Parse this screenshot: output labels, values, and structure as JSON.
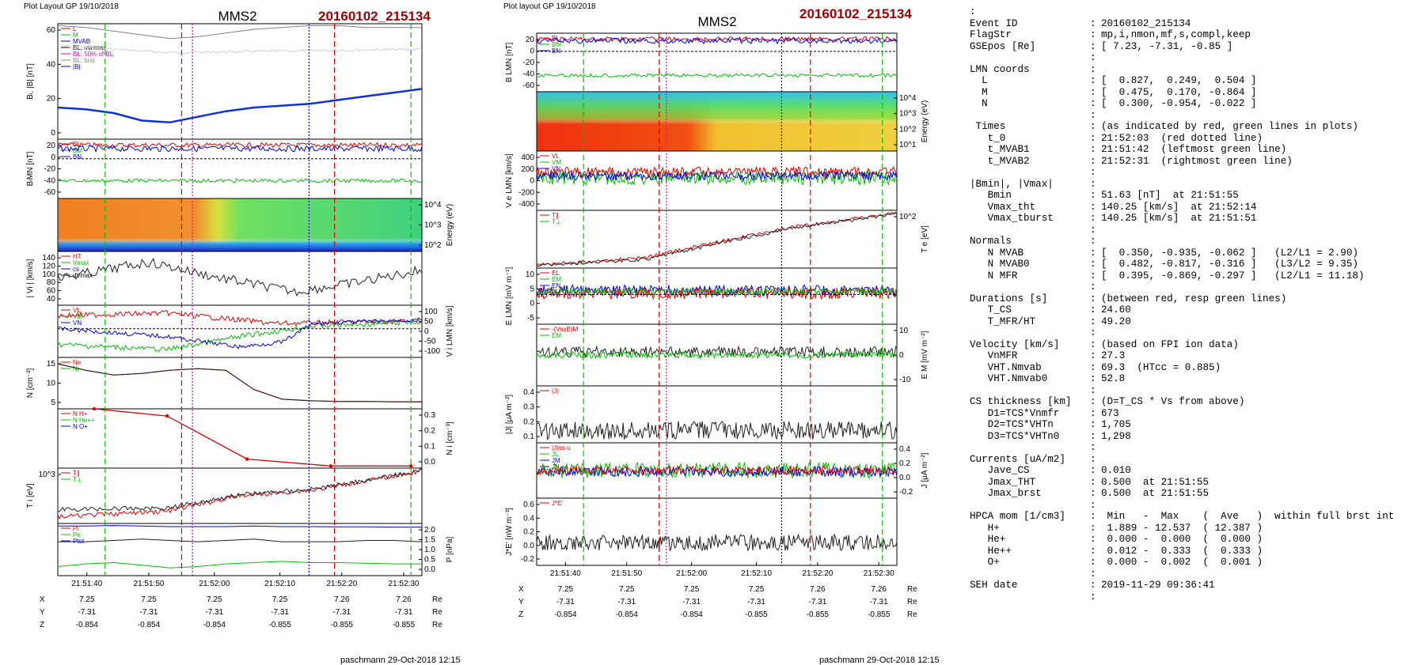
{
  "left_panel": {
    "header_left": "Plot Layout GP 19/10/2018",
    "title": "MMS2",
    "event": "20160102_215134",
    "footer": "paschmann 29-Oct-2018 12:15"
  },
  "right_panel": {
    "header_left": "Plot layout GP 19/10/2018",
    "title": "MMS2",
    "event": "20160102_215134",
    "footer": "paschmann 29-Oct-2018 12:15"
  },
  "colors": {
    "red": "#e00000",
    "green": "#00c000",
    "blue": "#0000e0",
    "magenta": "#e000e0",
    "title_red": "#a00000",
    "black": "#000000",
    "gray": "#888888"
  },
  "chart_data": [
    {
      "type": "line",
      "title": "MMS2",
      "subtitle": "20160102_215134",
      "x_tick_labels": [
        "21:51:40",
        "21:51:50",
        "21:52:00",
        "21:52:10",
        "21:52:20",
        "21:52:30"
      ],
      "position_table": {
        "rows": [
          {
            "label": "X",
            "values": [
              "7.25",
              "7.25",
              "7.25",
              "7.25",
              "7.26",
              "7.26"
            ],
            "unit": "Re"
          },
          {
            "label": "Y",
            "values": [
              "-7.31",
              "-7.31",
              "-7.31",
              "-7.31",
              "-7.31",
              "-7.31"
            ],
            "unit": "Re"
          },
          {
            "label": "Z",
            "values": [
              "-0.854",
              "-0.854",
              "-0.854",
              "-0.855",
              "-0.855",
              "-0.855"
            ],
            "unit": "Re"
          }
        ]
      },
      "panels": [
        {
          "ylabel": "Bₗ, |B| [nT]",
          "yticks": [
            "60",
            "40",
            "20",
            "0"
          ],
          "ylim": [
            0,
            62
          ],
          "legend": [
            "L",
            "M",
            "MVAB",
            "BL, minmax",
            "BL: 50% of BL",
            "BL: brst",
            "|B|"
          ],
          "series": [
            {
              "name": "|B|",
              "values": [
                61,
                60,
                58,
                56,
                54,
                55,
                57,
                59,
                60,
                61,
                61,
                60,
                60,
                60
              ]
            },
            {
              "name": "BL brst",
              "values": [
                17,
                16,
                14,
                10,
                9,
                12,
                15,
                17,
                18,
                19,
                21,
                23,
                25,
                27
              ]
            }
          ]
        },
        {
          "ylabel": "BₗMN [nT]",
          "yticks": [
            "20",
            "0",
            "-20",
            "-40",
            "-60"
          ],
          "ylim": [
            -60,
            25
          ],
          "legend": [
            "BL",
            "BM",
            "BN"
          ]
        },
        {
          "ylabel": "Energy (eV)",
          "yticks": [
            "10^4",
            "10^3",
            "10^2"
          ],
          "type": "heatmap"
        },
        {
          "ylabel": "| Vi | [km/s]",
          "yticks": [
            "140",
            "120",
            "100",
            "80",
            "60",
            "40"
          ],
          "ylim": [
            30,
            140
          ],
          "legend": [
            "HT",
            "Vmax",
            "cs",
            "dVmax"
          ]
        },
        {
          "ylabel": "V i LMN [km/s]",
          "yticks": [
            "100",
            "50",
            "0",
            "-50",
            "-100"
          ],
          "ylim": [
            -100,
            100
          ],
          "legend": [
            "VL",
            "VM",
            "VN"
          ]
        },
        {
          "ylabel": "N [cm⁻³]",
          "yticks": [
            "15",
            "10",
            "5"
          ],
          "ylim": [
            0,
            16
          ],
          "legend": [
            "Ne",
            "Ni"
          ],
          "series": [
            {
              "name": "Ni",
              "values": [
                14,
                12,
                10.5,
                11,
                12,
                12.5,
                12,
                6,
                3,
                2.5,
                2.3,
                2.3,
                2.2,
                2.2
              ]
            }
          ]
        },
        {
          "ylabel": "N i [cm⁻³]",
          "yticks": [
            "0.3",
            "0.2",
            "0.1",
            "0.0"
          ],
          "ylim": [
            0,
            0.33
          ],
          "legend": [
            "N H+",
            "N He++",
            "N O+"
          ],
          "series": [
            {
              "name": "N He++",
              "x": [
                0.1,
                0.3,
                0.52,
                0.75,
                0.97
              ],
              "values": [
                0.33,
                0.29,
                0.05,
                0.012,
                0.012
              ]
            }
          ]
        },
        {
          "ylabel": "T i [eV]",
          "yticks": [
            "10^3"
          ],
          "legend": [
            "T∥",
            "T⊥"
          ]
        },
        {
          "ylabel": "P [nPa]",
          "yticks": [
            "2.0",
            "1.5",
            "1.0",
            "0.5",
            "0.0"
          ],
          "ylim": [
            0,
            2
          ],
          "legend": [
            "Pi",
            "Pe",
            "Ptot"
          ],
          "series": [
            {
              "name": "Ptot",
              "values": [
                1.9,
                1.9,
                1.92,
                1.9,
                1.88,
                1.88,
                1.88,
                1.9,
                1.88,
                1.88,
                1.87,
                1.87,
                1.86,
                1.86
              ]
            },
            {
              "name": "Pi",
              "values": [
                1.3,
                1.3,
                1.35,
                1.4,
                1.35,
                1.3,
                1.35,
                1.4,
                1.3,
                1.3,
                1.3,
                1.35,
                1.35,
                1.3
              ]
            },
            {
              "name": "Pe",
              "values": [
                0.35,
                0.45,
                0.5,
                0.4,
                0.3,
                0.35,
                0.45,
                0.5,
                0.55,
                0.5,
                0.5,
                0.48,
                0.45,
                0.45
              ]
            }
          ]
        }
      ]
    },
    {
      "type": "line",
      "title": "MMS2",
      "subtitle": "20160102_215134",
      "x_tick_labels": [
        "21:51:40",
        "21:51:50",
        "21:52:00",
        "21:52:10",
        "21:52:20",
        "21:52:30"
      ],
      "position_table": {
        "rows": [
          {
            "label": "X",
            "values": [
              "7.25",
              "7.25",
              "7.25",
              "7.25",
              "7.26",
              "7.26"
            ],
            "unit": "Re"
          },
          {
            "label": "Y",
            "values": [
              "-7.31",
              "-7.31",
              "-7.31",
              "-7.31",
              "-7.31",
              "-7.31"
            ],
            "unit": "Re"
          },
          {
            "label": "Z",
            "values": [
              "-0.854",
              "-0.854",
              "-0.854",
              "-0.855",
              "-0.855",
              "-0.855"
            ],
            "unit": "Re"
          }
        ]
      },
      "panels": [
        {
          "ylabel": "B LMN [nT]",
          "yticks": [
            "20",
            "0",
            "-20",
            "-40",
            "-60"
          ],
          "ylim": [
            -60,
            25
          ],
          "legend": [
            "BL",
            "BM",
            "BN"
          ]
        },
        {
          "ylabel": "Energy (eV)",
          "yticks": [
            "10^4",
            "10^3",
            "10^2",
            "10^1"
          ],
          "type": "heatmap"
        },
        {
          "ylabel": "V e LMN [km/s]",
          "yticks": [
            "400",
            "200",
            "0",
            "-200",
            "-400"
          ],
          "ylim": [
            -450,
            450
          ],
          "legend": [
            "VL",
            "VM",
            "VN"
          ]
        },
        {
          "ylabel": "T e [eV]",
          "yticks": [
            "10^2"
          ],
          "legend": [
            "T∥",
            "T⊥"
          ]
        },
        {
          "ylabel": "E LMN [mV m⁻¹]",
          "yticks": [
            "10",
            "5",
            "0",
            "-5"
          ],
          "ylim": [
            -10,
            12
          ],
          "legend": [
            "EL",
            "EM",
            "EN"
          ]
        },
        {
          "ylabel": "E M [mV m⁻²]",
          "yticks": [
            "10",
            "0",
            "-10"
          ],
          "ylim": [
            -14,
            14
          ],
          "legend": [
            "-(VexB)M",
            "EM"
          ]
        },
        {
          "ylabel": "|J| [μA m⁻²]",
          "yticks": [
            "0.4",
            "0.3",
            "0.2",
            "0.1"
          ],
          "ylim": [
            0,
            0.45
          ],
          "legend": [
            "|J|"
          ]
        },
        {
          "ylabel": "J [μA m⁻²]",
          "yticks": [
            "0.4",
            "0.2",
            "0.0",
            "-0.2"
          ],
          "ylim": [
            -0.3,
            0.45
          ],
          "legend": [
            "|J|ns-u",
            "JL",
            "JM",
            "JN"
          ]
        },
        {
          "ylabel": "J*E' [nW m⁻³]",
          "yticks": [
            "0.6",
            "0.4",
            "0.2",
            "0.0",
            "-0.2"
          ],
          "ylim": [
            -0.28,
            0.65
          ],
          "legend": [
            "J*E'"
          ]
        }
      ]
    }
  ],
  "info": {
    "rows": [
      {
        "k": ":",
        "c": "",
        "v": ""
      },
      {
        "k": "Event ID",
        "c": ":",
        "v": "20160102_215134"
      },
      {
        "k": "FlagStr",
        "c": ":",
        "v": "mp,i,nmon,mf,s,compl,keep"
      },
      {
        "k": "GSEpos [Re]",
        "c": ":",
        "v": "[ 7.23, -7.31, -0.85 ]"
      },
      {
        "k": "",
        "c": ":",
        "v": ""
      },
      {
        "k": "LMN coords",
        "c": ":",
        "v": ""
      },
      {
        "k": "  L",
        "c": ":",
        "v": "[  0.827,  0.249,  0.504 ]"
      },
      {
        "k": "  M",
        "c": ":",
        "v": "[  0.475,  0.170, -0.864 ]"
      },
      {
        "k": "  N",
        "c": ":",
        "v": "[  0.300, -0.954, -0.022 ]"
      },
      {
        "k": "",
        "c": ":",
        "v": ""
      },
      {
        "k": " Times",
        "c": ":",
        "v": "(as indicated by red, green lines in plots)"
      },
      {
        "k": "   t_0",
        "c": ":",
        "v": "21:52:03  (red dotted line)"
      },
      {
        "k": "   t_MVAB1",
        "c": ":",
        "v": "21:51:42  (leftmost green line)"
      },
      {
        "k": "   t_MVAB2",
        "c": ":",
        "v": "21:52:31  (rightmost green line)"
      },
      {
        "k": "",
        "c": ":",
        "v": ""
      },
      {
        "k": "|Bmin|, |Vmax|",
        "c": ":",
        "v": ""
      },
      {
        "k": "   Bmin",
        "c": ":",
        "v": "51.63 [nT]  at 21:51:55"
      },
      {
        "k": "   Vmax_tht",
        "c": ":",
        "v": "140.25 [km/s]  at 21:52:14"
      },
      {
        "k": "   Vmax_tburst",
        "c": ":",
        "v": "140.25 [km/s]  at 21:51:51"
      },
      {
        "k": "",
        "c": ":",
        "v": ""
      },
      {
        "k": "Normals",
        "c": ":",
        "v": ""
      },
      {
        "k": "   N MVAB",
        "c": ":",
        "v": "[  0.350, -0.935, -0.062 ]   (L2/L1 = 2.90)"
      },
      {
        "k": "   N MVAB0",
        "c": ":",
        "v": "[  0.482, -0.817, -0.316 ]   (L3/L2 = 9.35)"
      },
      {
        "k": "   N MFR",
        "c": ":",
        "v": "[  0.395, -0.869, -0.297 ]   (L2/L1 = 11.18)"
      },
      {
        "k": "",
        "c": ":",
        "v": ""
      },
      {
        "k": "Durations [s]",
        "c": ":",
        "v": "(between red, resp green lines)"
      },
      {
        "k": "   T_CS",
        "c": ":",
        "v": "24.60"
      },
      {
        "k": "   T_MFR/HT",
        "c": ":",
        "v": "49.20"
      },
      {
        "k": "",
        "c": ":",
        "v": ""
      },
      {
        "k": "Velocity [km/s]",
        "c": ":",
        "v": "(based on FPI ion data)"
      },
      {
        "k": "   VnMFR",
        "c": ":",
        "v": "27.3"
      },
      {
        "k": "   VHT.Nmvab",
        "c": ":",
        "v": "69.3  (HTcc = 0.885)"
      },
      {
        "k": "   VHT.Nmvab0",
        "c": ":",
        "v": "52.8"
      },
      {
        "k": "",
        "c": ":",
        "v": ""
      },
      {
        "k": "CS thickness [km]",
        "c": ":",
        "v": "(D=T_CS * Vs from above)"
      },
      {
        "k": "   D1=TCS*Vnmfr",
        "c": ":",
        "v": "673"
      },
      {
        "k": "   D2=TCS*VHTn",
        "c": ":",
        "v": "1,705"
      },
      {
        "k": "   D3=TCS*VHTn0",
        "c": ":",
        "v": "1,298"
      },
      {
        "k": "",
        "c": ":",
        "v": ""
      },
      {
        "k": "Currents [uA/m2]",
        "c": ":",
        "v": ""
      },
      {
        "k": "   Jave_CS",
        "c": ":",
        "v": "0.010"
      },
      {
        "k": "   Jmax_THT",
        "c": ":",
        "v": "0.500  at 21:51:55"
      },
      {
        "k": "   Jmax_brst",
        "c": ":",
        "v": "0.500  at 21:51:55"
      },
      {
        "k": "",
        "c": ":",
        "v": ""
      },
      {
        "k": "HPCA mom [1/cm3]",
        "c": ":",
        "v": " Min   -  Max    (  Ave   )  within full brst int"
      },
      {
        "k": "   H+",
        "c": ":",
        "v": " 1.889 - 12.537  ( 12.387 )"
      },
      {
        "k": "   He+",
        "c": ":",
        "v": " 0.000 -  0.000  (  0.000 )"
      },
      {
        "k": "   He++",
        "c": ":",
        "v": " 0.012 -  0.333  (  0.333 )"
      },
      {
        "k": "   O+",
        "c": ":",
        "v": " 0.000 -  0.002  (  0.001 )"
      },
      {
        "k": "",
        "c": ":",
        "v": ""
      },
      {
        "k": "SEH date",
        "c": ":",
        "v": "2019-11-29 09:36:41"
      },
      {
        "k": "",
        "c": ":",
        "v": ""
      }
    ]
  }
}
